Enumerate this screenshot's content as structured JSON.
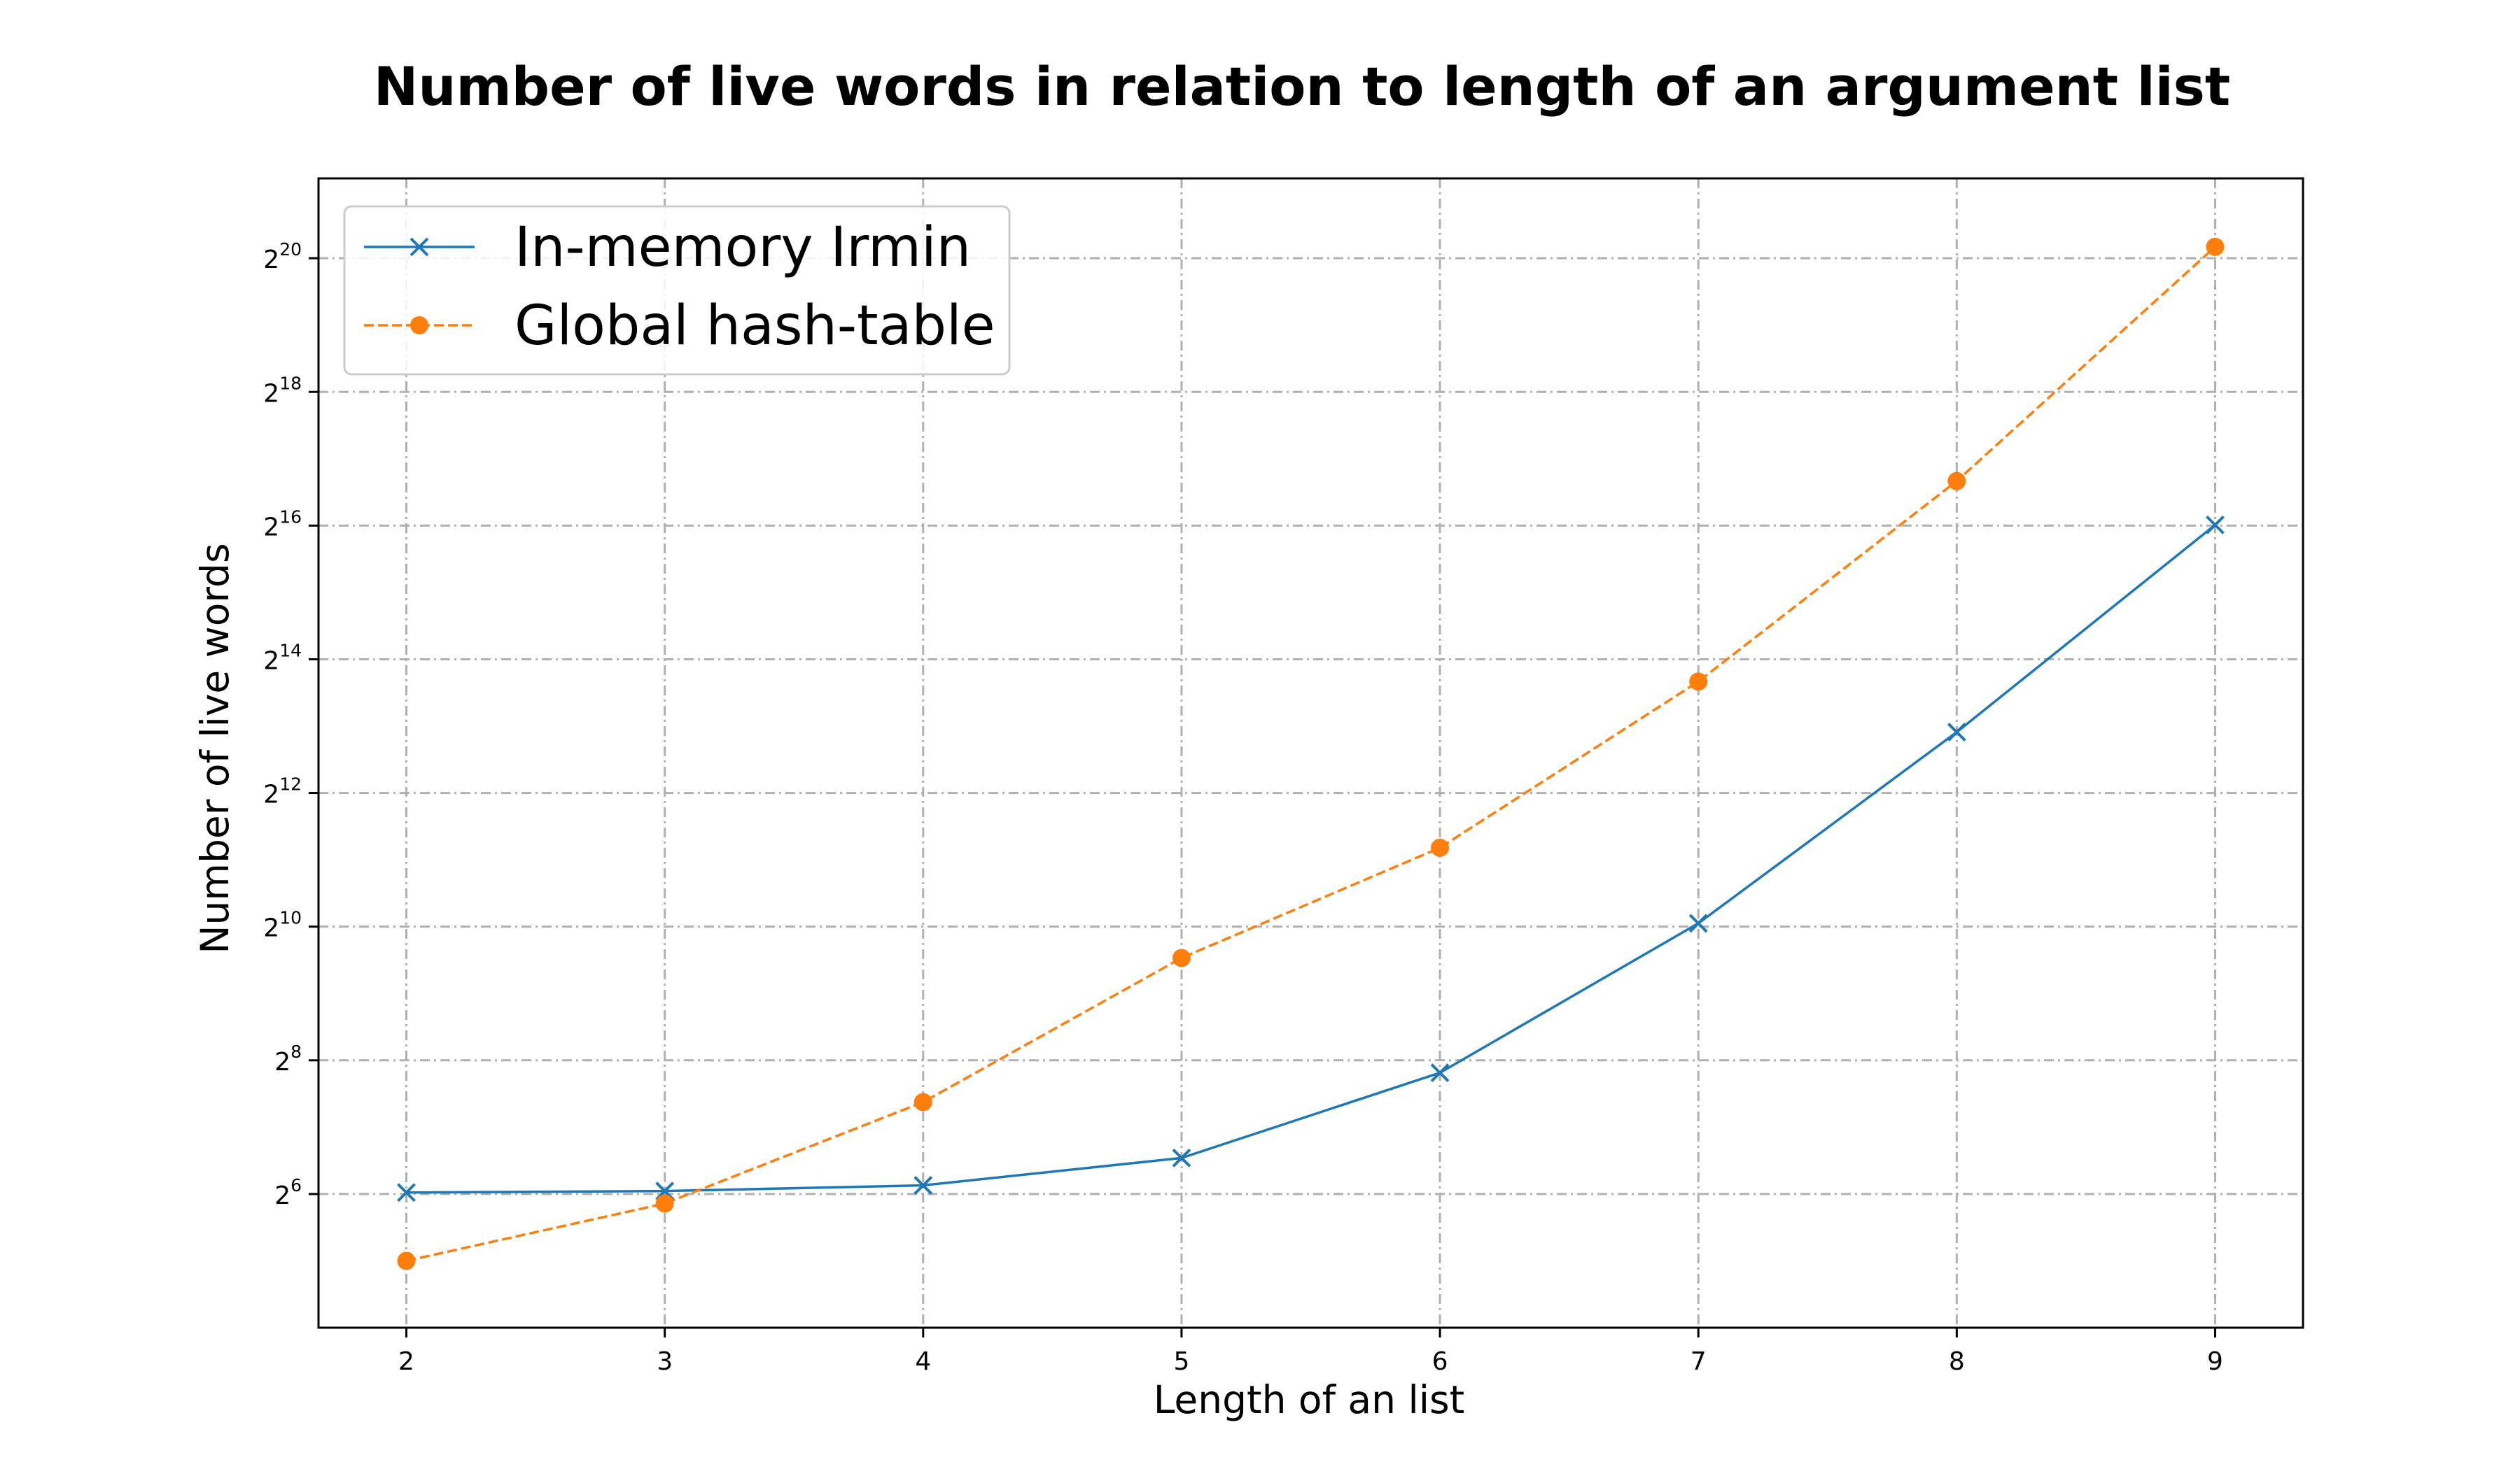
{
  "chart_data": {
    "type": "line",
    "title": "Number of live words in relation to length of an argument list",
    "xlabel": "Length of an list",
    "ylabel": "Number of live words",
    "x": [
      2,
      3,
      4,
      5,
      6,
      7,
      8,
      9
    ],
    "x_ticks": [
      "2",
      "3",
      "4",
      "5",
      "6",
      "7",
      "8",
      "9"
    ],
    "xlim": [
      1.66,
      9.34
    ],
    "y_scale": "log2",
    "y_ticks": [
      {
        "base": "2",
        "exp": "6",
        "value": 64
      },
      {
        "base": "2",
        "exp": "8",
        "value": 256
      },
      {
        "base": "2",
        "exp": "10",
        "value": 1024
      },
      {
        "base": "2",
        "exp": "12",
        "value": 4096
      },
      {
        "base": "2",
        "exp": "14",
        "value": 16384
      },
      {
        "base": "2",
        "exp": "16",
        "value": 65536
      },
      {
        "base": "2",
        "exp": "18",
        "value": 262144
      },
      {
        "base": "2",
        "exp": "20",
        "value": 1048576
      }
    ],
    "ylim": [
      16,
      2400000
    ],
    "grid": true,
    "legend_position": "top-left",
    "series": [
      {
        "name": "In-memory Irmin",
        "color": "#1f77b4",
        "line_style": "solid",
        "marker": "x",
        "values": [
          65,
          66,
          70,
          93,
          225,
          1060,
          7700,
          66000
        ]
      },
      {
        "name": "Global hash-table",
        "color": "#ff7f0e",
        "line_style": "dashed",
        "marker": "circle",
        "values": [
          32,
          58,
          166,
          740,
          2320,
          13000,
          104000,
          1180000
        ]
      }
    ]
  }
}
